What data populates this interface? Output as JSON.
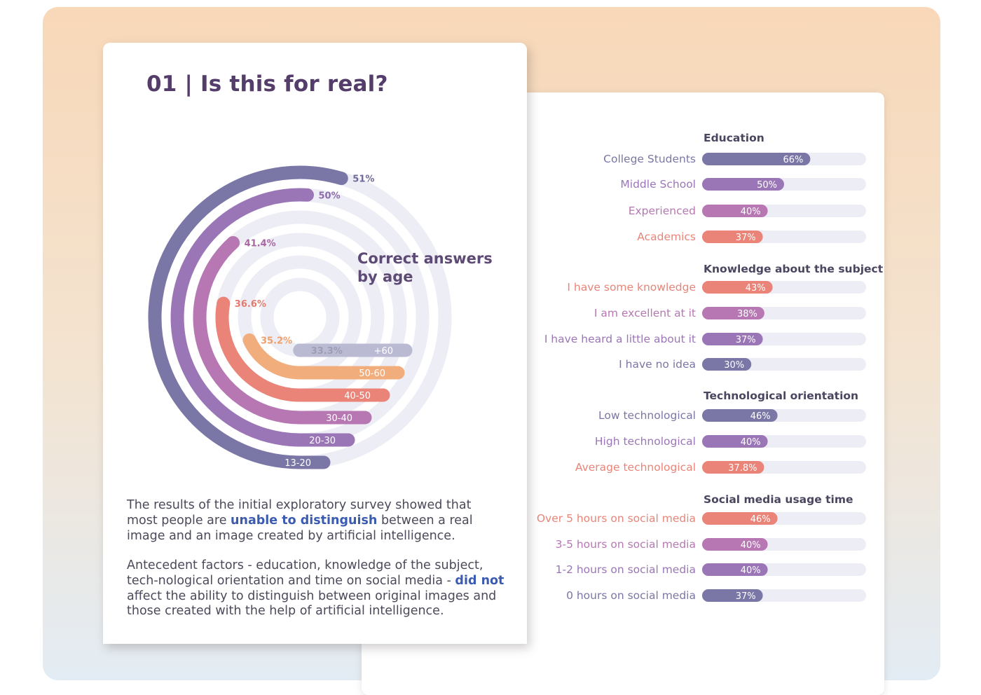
{
  "title": "01 | Is this for real?",
  "center_label": {
    "line1": "Correct answers",
    "line2": "by age"
  },
  "paragraph1": {
    "before": "The results of the initial exploratory survey showed that most people are ",
    "highlight": "unable to distinguish",
    "after": " between a real image and an image created by artificial intelligence."
  },
  "paragraph2": {
    "before": "Antecedent factors - education, knowledge of the subject, tech-nological orientation and time on social media - ",
    "highlight": "did not",
    "after": " affect the ability to distinguish between original images and those created with the help of artificial intelligence."
  },
  "colors": {
    "c1320": "#7a76a6",
    "c2030": "#9b76b7",
    "c3040": "#b777b3",
    "c4050": "#ea8478",
    "c5060": "#f2ad7d",
    "c60": "#babbd3",
    "track": "#ededf5",
    "title": "#543d6a"
  },
  "chart_data": [
    {
      "type": "radial-bar",
      "title": "Correct answers by age",
      "categories": [
        "13-20",
        "20-30",
        "30-40",
        "40-50",
        "50-60",
        "+60"
      ],
      "values": [
        51,
        50,
        41.4,
        36.6,
        35.2,
        33.3
      ],
      "value_labels": [
        "51%",
        "50%",
        "41.4%",
        "36.6%",
        "35.2%",
        "33.3%"
      ],
      "unit": "%"
    },
    {
      "type": "bar",
      "orientation": "horizontal",
      "xlim": [
        0,
        100
      ],
      "groups": [
        {
          "title": "Education",
          "items": [
            {
              "label": "College Students",
              "value": 66,
              "value_label": "66%",
              "color": "#7a76a6"
            },
            {
              "label": "Middle School",
              "value": 50,
              "value_label": "50%",
              "color": "#9b76b7"
            },
            {
              "label": "Experienced",
              "value": 40,
              "value_label": "40%",
              "color": "#b777b3"
            },
            {
              "label": "Academics",
              "value": 37,
              "value_label": "37%",
              "color": "#ea8478"
            }
          ]
        },
        {
          "title": "Knowledge about the subject",
          "items": [
            {
              "label": "I have some knowledge",
              "value": 43,
              "value_label": "43%",
              "color": "#ea8478"
            },
            {
              "label": "I am excellent at it",
              "value": 38,
              "value_label": "38%",
              "color": "#b777b3"
            },
            {
              "label": "I have heard a little about it",
              "value": 37,
              "value_label": "37%",
              "color": "#9b76b7"
            },
            {
              "label": "I have no idea",
              "value": 30,
              "value_label": "30%",
              "color": "#7a76a6"
            }
          ]
        },
        {
          "title": "Technological orientation",
          "items": [
            {
              "label": "Low technological",
              "value": 46,
              "value_label": "46%",
              "color": "#7a76a6"
            },
            {
              "label": "High technological",
              "value": 40,
              "value_label": "40%",
              "color": "#9b76b7"
            },
            {
              "label": "Average technological",
              "value": 37.8,
              "value_label": "37.8%",
              "color": "#ea8478"
            }
          ]
        },
        {
          "title": "Social media usage time",
          "items": [
            {
              "label": "Over 5 hours on social media",
              "value": 46,
              "value_label": "46%",
              "color": "#ea8478"
            },
            {
              "label": "3-5 hours on social media",
              "value": 40,
              "value_label": "40%",
              "color": "#b777b3"
            },
            {
              "label": "1-2 hours on social media",
              "value": 40,
              "value_label": "40%",
              "color": "#9b76b7"
            },
            {
              "label": "0 hours on social media",
              "value": 37,
              "value_label": "37%",
              "color": "#7a76a6"
            }
          ]
        }
      ]
    }
  ]
}
